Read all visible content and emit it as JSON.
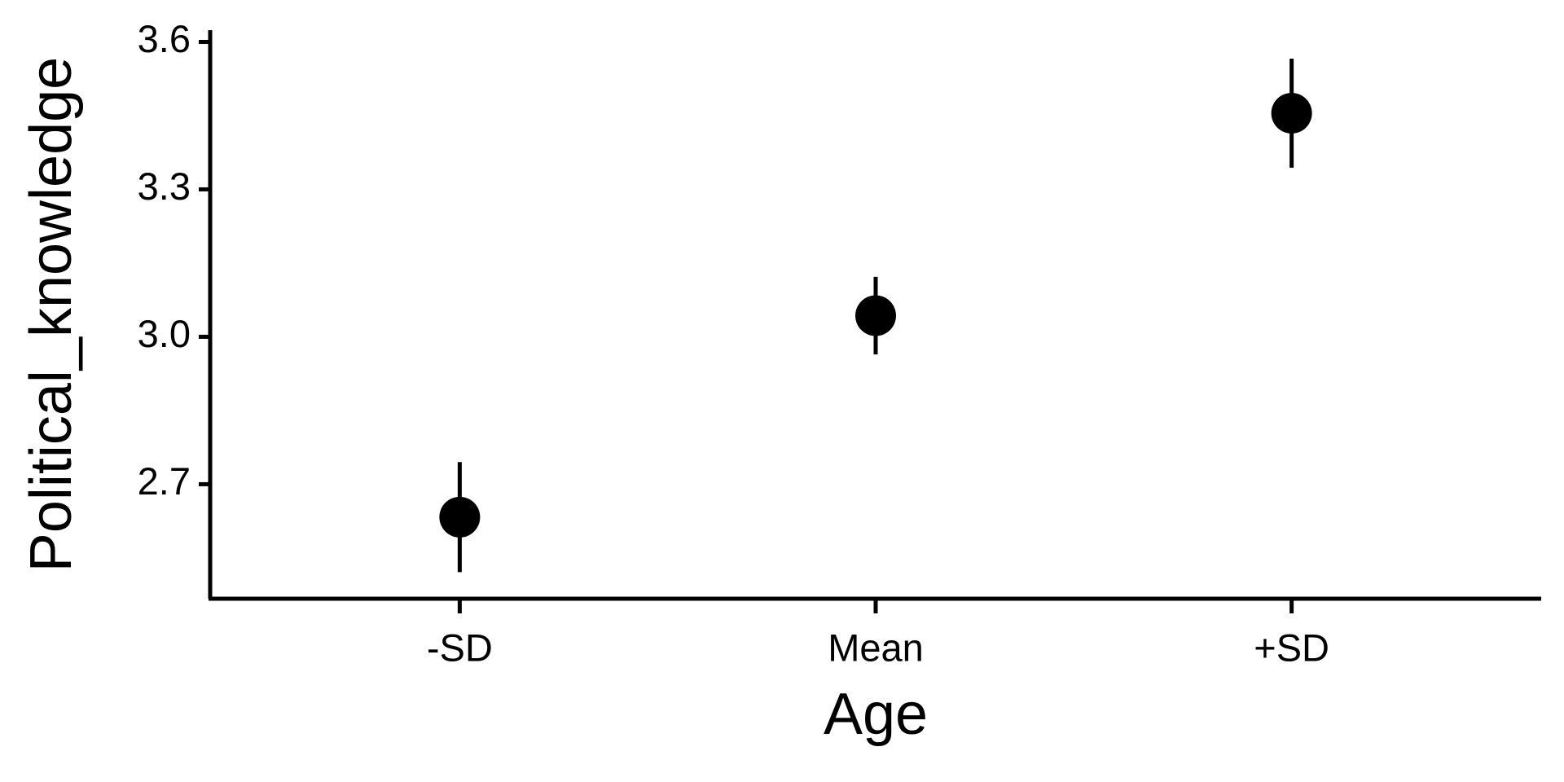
{
  "chart_data": {
    "type": "point",
    "x_label": "Age",
    "y_label": "Political_knowledge",
    "categories": [
      "-SD",
      "Mean",
      "+SD"
    ],
    "values": [
      2.633,
      3.043,
      3.455
    ],
    "error": [
      0.112,
      0.079,
      0.111
    ],
    "color": "#000000",
    "ylim": [
      2.467,
      3.624
    ],
    "yticks": [
      2.7,
      {
        "value": 3,
        "label": "3.0"
      },
      3.3,
      3.6
    ],
    "grid": false
  }
}
